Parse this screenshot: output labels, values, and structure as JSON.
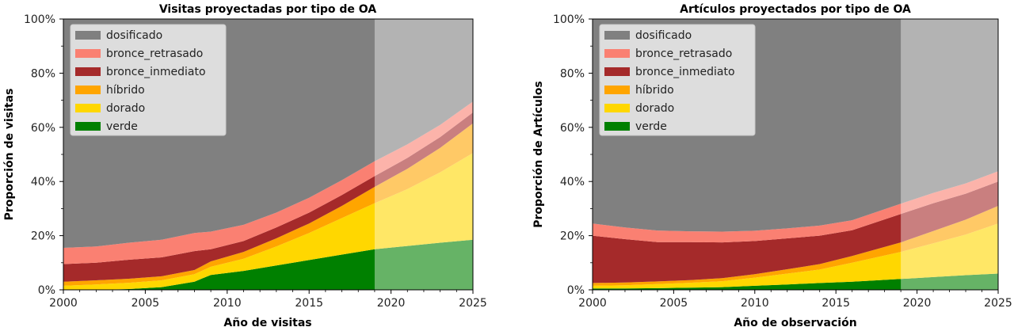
{
  "chart_data": [
    {
      "type": "area",
      "title": "Visitas proyectadas por  tipo de OA",
      "xlabel": "Año de visitas",
      "ylabel": "Proporción de visitas",
      "xlim": [
        2000,
        2025
      ],
      "ylim": [
        0,
        100
      ],
      "x_ticks": [
        "2000",
        "2005",
        "2010",
        "2015",
        "2020",
        "2025"
      ],
      "y_ticks": [
        "0%",
        "20%",
        "40%",
        "60%",
        "80%",
        "100%"
      ],
      "projection_start": 2019,
      "legend_position": "top-left",
      "x": [
        2000,
        2002,
        2004,
        2006,
        2008,
        2009,
        2011,
        2013,
        2015,
        2017,
        2019,
        2021,
        2023,
        2025
      ],
      "series": [
        {
          "name": "verde",
          "color": "#008000",
          "values": [
            0,
            0,
            0.3,
            1,
            3,
            5.5,
            7,
            9,
            11,
            13,
            15,
            16.2,
            17.4,
            18.5
          ]
        },
        {
          "name": "dorado",
          "color": "#ffd700",
          "values": [
            1.5,
            2,
            2.3,
            2.5,
            2.8,
            3,
            4.5,
            7,
            10,
            13.5,
            17,
            21,
            26,
            32
          ]
        },
        {
          "name": "híbrido",
          "color": "#ffa500",
          "values": [
            1.5,
            1.5,
            1.5,
            1.5,
            1.5,
            2,
            2.5,
            3,
            3.5,
            4.5,
            6,
            7.5,
            9,
            11
          ]
        },
        {
          "name": "bronce_inmediato",
          "color": "#a52a2a",
          "values": [
            6.5,
            6.5,
            7,
            7,
            7,
            4.5,
            4,
            4,
            4,
            4,
            4,
            4,
            4,
            4
          ]
        },
        {
          "name": "bronce_retrasado",
          "color": "#fa8072",
          "values": [
            6,
            6,
            6.3,
            6.5,
            6.7,
            6.5,
            6,
            5.5,
            5.5,
            5.5,
            5.5,
            5,
            4.5,
            4
          ]
        },
        {
          "name": "dosificado",
          "color": "#808080",
          "values": [
            84.5,
            84,
            82.6,
            81.5,
            79,
            78.5,
            76,
            71.5,
            66,
            59.5,
            52.5,
            46.3,
            39.1,
            30.5
          ]
        }
      ]
    },
    {
      "type": "area",
      "title": "Artículos proyectados por tipo de OA",
      "xlabel": "Año de observación",
      "ylabel": "Proporción de Artículos",
      "xlim": [
        2000,
        2025
      ],
      "ylim": [
        0,
        100
      ],
      "x_ticks": [
        "2000",
        "2005",
        "2010",
        "2015",
        "2020",
        "2025"
      ],
      "y_ticks": [
        "0%",
        "20%",
        "40%",
        "60%",
        "80%",
        "100%"
      ],
      "projection_start": 2019,
      "legend_position": "top-left",
      "x": [
        2000,
        2002,
        2004,
        2006,
        2008,
        2010,
        2012,
        2014,
        2016,
        2019,
        2021,
        2023,
        2025
      ],
      "series": [
        {
          "name": "verde",
          "color": "#008000",
          "values": [
            0.5,
            0.5,
            0.6,
            0.8,
            1,
            1.5,
            2,
            2.5,
            3,
            4,
            4.7,
            5.4,
            6
          ]
        },
        {
          "name": "dorado",
          "color": "#ffd700",
          "values": [
            1,
            1.2,
            1.5,
            1.8,
            2.2,
            3,
            4,
            5,
            7,
            10,
            12.5,
            15,
            18.5
          ]
        },
        {
          "name": "híbrido",
          "color": "#ffa500",
          "values": [
            1,
            1,
            1,
            1,
            1.1,
            1.3,
            1.6,
            2,
            2.5,
            3.5,
            4.5,
            5.5,
            6.5
          ]
        },
        {
          "name": "bronce_inmediato",
          "color": "#a52a2a",
          "values": [
            17.5,
            16,
            14.5,
            14,
            13.2,
            12.2,
            11.4,
            10.5,
            9.5,
            10.5,
            10.3,
            9.6,
            9
          ]
        },
        {
          "name": "bronce_retrasado",
          "color": "#fa8072",
          "values": [
            4.5,
            4.3,
            4.3,
            4,
            4,
            3.8,
            3.7,
            3.7,
            3.7,
            3.8,
            3.8,
            3.8,
            3.8
          ]
        },
        {
          "name": "dosificado",
          "color": "#808080",
          "values": [
            75.5,
            77,
            78.1,
            78.4,
            78.5,
            78.2,
            77.3,
            76.3,
            74.3,
            68.2,
            64.2,
            60.7,
            56.2
          ]
        }
      ]
    }
  ]
}
